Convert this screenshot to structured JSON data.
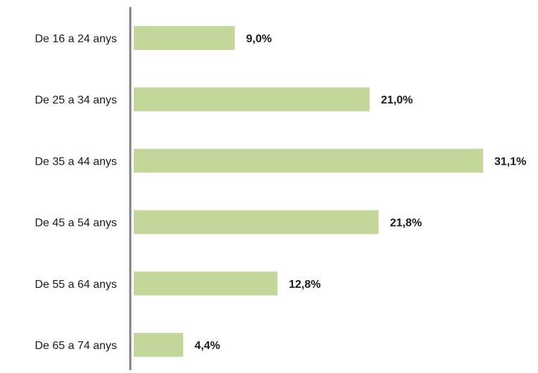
{
  "chart_data": {
    "type": "bar",
    "orientation": "horizontal",
    "categories": [
      "De 16 a 24 anys",
      "De 25 a 34 anys",
      "De 35 a 44 anys",
      "De 45 a 54 anys",
      "De 55 a 64 anys",
      "De 65 a 74 anys"
    ],
    "values": [
      9.0,
      21.0,
      31.1,
      21.8,
      12.8,
      4.4
    ],
    "value_labels": [
      "9,0%",
      "21,0%",
      "31,1%",
      "21,8%",
      "12,8%",
      "4,4%"
    ],
    "unit": "%",
    "xlim": [
      0,
      31.1
    ],
    "grid": false,
    "legend": "none",
    "bar_color": "#c4d79b",
    "axis_color": "#808080"
  }
}
